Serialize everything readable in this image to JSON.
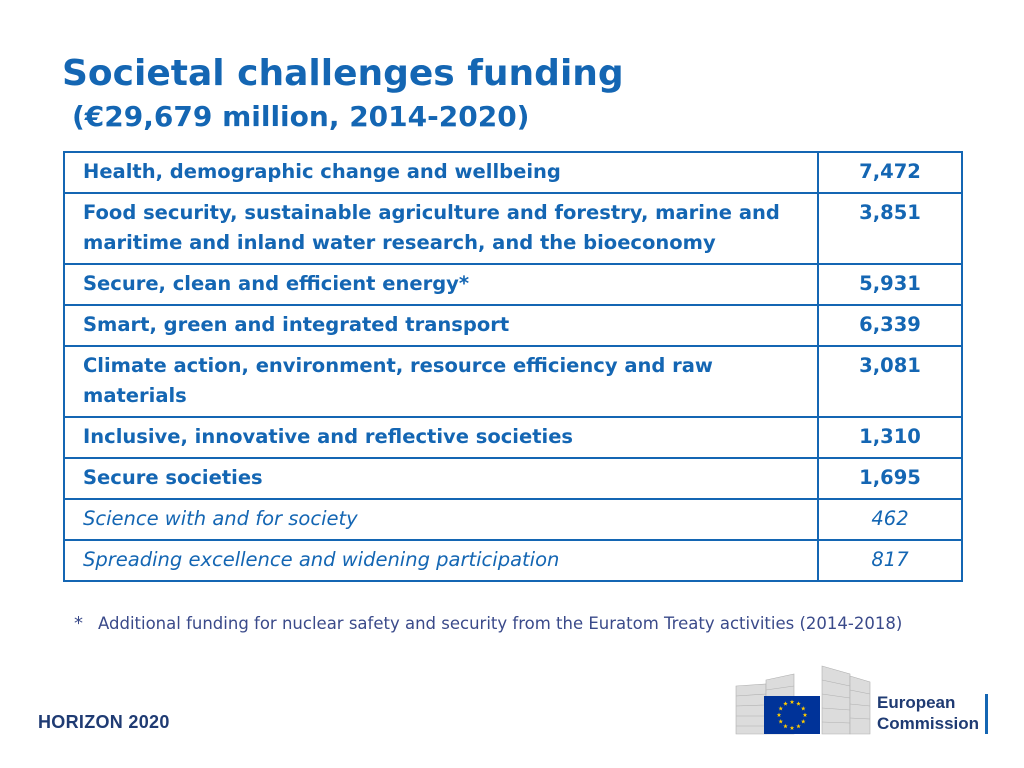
{
  "title": "Societal challenges funding",
  "subtitle": "(€29,679 million, 2014-2020)",
  "table": {
    "rows": [
      {
        "label": "Health, demographic change and wellbeing",
        "value": "7,472"
      },
      {
        "label": "Food security, sustainable agriculture and forestry, marine and maritime and inland water research, and the bioeconomy",
        "value": "3,851"
      },
      {
        "label": "Secure, clean and efficient energy*",
        "value": "5,931"
      },
      {
        "label": "Smart, green and integrated transport",
        "value": "6,339"
      },
      {
        "label": "Climate action, environment, resource efficiency and raw materials",
        "value": "3,081"
      },
      {
        "label": "Inclusive, innovative and reflective societies",
        "value": "1,310"
      },
      {
        "label": "Secure societies",
        "value": "1,695"
      },
      {
        "label": "Science with and for society",
        "value": "462"
      },
      {
        "label": "Spreading excellence and widening participation",
        "value": "817"
      }
    ]
  },
  "footnote": {
    "mark": "*",
    "text": "Additional funding for nuclear safety and security from the Euratom Treaty activities (2014-2018)"
  },
  "footer": {
    "programme": "HORIZON 2020",
    "logo_line1": "European",
    "logo_line2": "Commission"
  },
  "colors": {
    "accent": "#1466b3",
    "footer_text": "#1f3b73",
    "eu_flag": "#003399",
    "eu_stars": "#ffcc00"
  }
}
